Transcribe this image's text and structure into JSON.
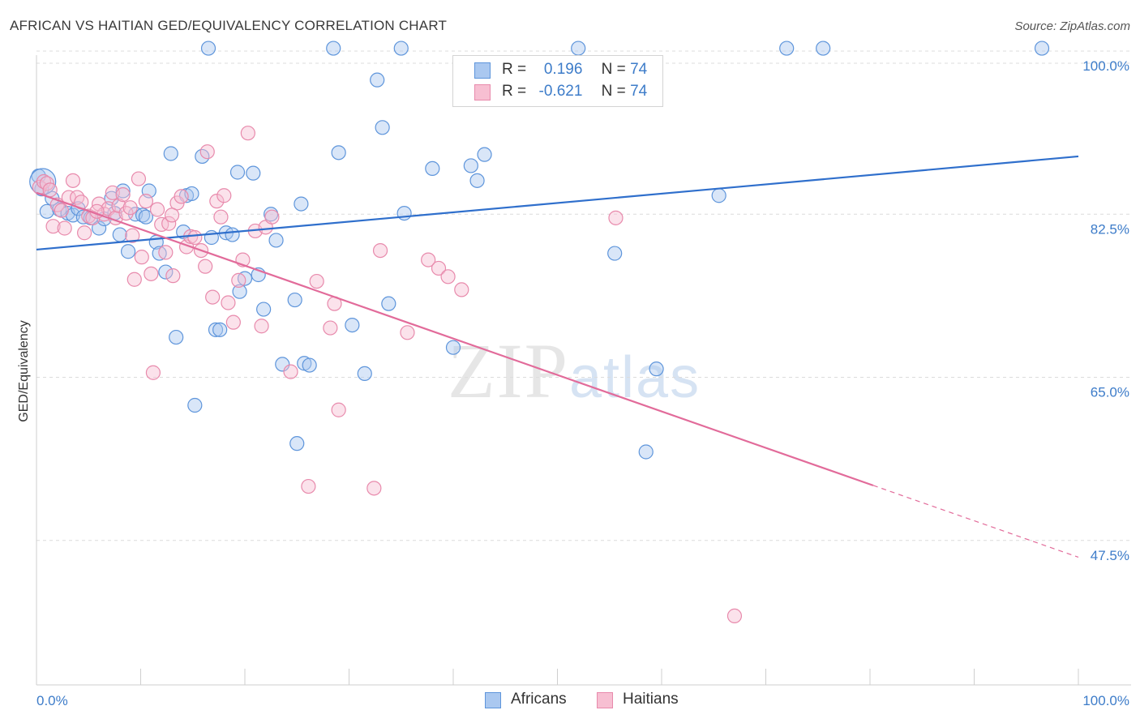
{
  "title": "AFRICAN VS HAITIAN GED/EQUIVALENCY CORRELATION CHART",
  "source": "Source: ZipAtlas.com",
  "watermark": {
    "zip": "ZIP",
    "atlas": "atlas"
  },
  "legend": {
    "r_label": "R =",
    "n_label": "N =",
    "africans": {
      "r": "0.196",
      "n": "74"
    },
    "haitians": {
      "r": "-0.621",
      "n": "74"
    }
  },
  "bottom_legend": {
    "africans": "Africans",
    "haitians": "Haitians"
  },
  "colors": {
    "africans_fill": "#aac8f0",
    "africans_stroke": "#5e95db",
    "africans_line": "#2f6fcc",
    "haitians_fill": "#f7bfd2",
    "haitians_stroke": "#e88aac",
    "haitians_line": "#e26b9a",
    "tick_text": "#3d7cc9"
  },
  "chart_data": {
    "type": "scatter",
    "title": "AFRICAN VS HAITIAN GED/EQUIVALENCY CORRELATION CHART",
    "xlabel": "",
    "ylabel": "GED/Equivalency",
    "xlim": [
      0,
      100
    ],
    "ylim": [
      32,
      102
    ],
    "x_tick_labels": [
      "0.0%",
      "100.0%"
    ],
    "y_ticks": [
      {
        "value": 100,
        "label": "100.0%"
      },
      {
        "value": 82.5,
        "label": "82.5%"
      },
      {
        "value": 65,
        "label": "65.0%"
      },
      {
        "value": 47.5,
        "label": "47.5%"
      }
    ],
    "grid": "horizontal dashed",
    "legend_position": "top-center",
    "series": [
      {
        "name": "Africans",
        "trend": {
          "x": [
            0,
            100
          ],
          "y": [
            78.7,
            88.7
          ],
          "solid_until": 100
        },
        "points": [
          [
            0.2,
            86.6
          ],
          [
            0.5,
            85.2
          ],
          [
            1.0,
            82.8
          ],
          [
            1.5,
            84.2
          ],
          [
            2.2,
            83.0
          ],
          [
            3.0,
            82.6
          ],
          [
            3.5,
            82.4
          ],
          [
            4.0,
            83.1
          ],
          [
            4.5,
            82.2
          ],
          [
            5.2,
            82.1
          ],
          [
            6.0,
            81.0
          ],
          [
            6.5,
            82.0
          ],
          [
            7.2,
            84.2
          ],
          [
            7.5,
            82.6
          ],
          [
            8.0,
            80.3
          ],
          [
            8.3,
            85.0
          ],
          [
            8.8,
            78.5
          ],
          [
            9.5,
            82.5
          ],
          [
            10.2,
            82.4
          ],
          [
            10.5,
            82.2
          ],
          [
            10.8,
            85.0
          ],
          [
            11.5,
            79.5
          ],
          [
            11.8,
            78.3
          ],
          [
            12.4,
            76.3
          ],
          [
            12.9,
            89.0
          ],
          [
            13.4,
            69.3
          ],
          [
            14.1,
            80.6
          ],
          [
            14.4,
            84.5
          ],
          [
            14.9,
            84.7
          ],
          [
            15.2,
            62.0
          ],
          [
            15.9,
            88.7
          ],
          [
            16.5,
            100.3
          ],
          [
            16.8,
            80.0
          ],
          [
            17.2,
            70.1
          ],
          [
            17.6,
            70.1
          ],
          [
            18.2,
            80.5
          ],
          [
            18.8,
            80.3
          ],
          [
            19.3,
            87.0
          ],
          [
            19.5,
            74.2
          ],
          [
            20.0,
            75.6
          ],
          [
            20.8,
            86.9
          ],
          [
            21.3,
            76.0
          ],
          [
            21.8,
            72.3
          ],
          [
            22.5,
            82.5
          ],
          [
            23.0,
            79.7
          ],
          [
            23.6,
            66.4
          ],
          [
            24.8,
            73.3
          ],
          [
            25.0,
            57.9
          ],
          [
            25.4,
            83.6
          ],
          [
            25.7,
            66.5
          ],
          [
            26.2,
            66.3
          ],
          [
            28.5,
            100.3
          ],
          [
            29.0,
            89.1
          ],
          [
            30.3,
            70.6
          ],
          [
            31.5,
            65.4
          ],
          [
            32.7,
            96.9
          ],
          [
            33.2,
            91.8
          ],
          [
            33.8,
            72.9
          ],
          [
            35.0,
            100.3
          ],
          [
            35.3,
            82.6
          ],
          [
            38.0,
            87.4
          ],
          [
            40.0,
            68.2
          ],
          [
            41.7,
            87.7
          ],
          [
            42.3,
            86.1
          ],
          [
            43.0,
            88.9
          ],
          [
            52.0,
            100.3
          ],
          [
            55.5,
            78.3
          ],
          [
            58.5,
            57.0
          ],
          [
            59.5,
            65.9
          ],
          [
            65.5,
            84.5
          ],
          [
            72.0,
            100.3
          ],
          [
            75.5,
            100.3
          ],
          [
            96.5,
            100.3
          ],
          [
            0.6,
            86.0
          ]
        ]
      },
      {
        "name": "Haitians",
        "trend": {
          "x": [
            0,
            100
          ],
          "y": [
            84.8,
            45.7
          ],
          "solid_until": 80.3
        },
        "points": [
          [
            0.3,
            85.4
          ],
          [
            0.7,
            86.0
          ],
          [
            1.0,
            85.8
          ],
          [
            1.3,
            85.1
          ],
          [
            1.6,
            81.2
          ],
          [
            2.0,
            83.5
          ],
          [
            2.4,
            82.9
          ],
          [
            2.7,
            81.0
          ],
          [
            3.1,
            84.3
          ],
          [
            3.5,
            86.1
          ],
          [
            3.9,
            84.3
          ],
          [
            4.3,
            83.8
          ],
          [
            4.6,
            80.5
          ],
          [
            5.0,
            82.3
          ],
          [
            5.4,
            82.1
          ],
          [
            6.0,
            83.6
          ],
          [
            6.5,
            82.5
          ],
          [
            6.9,
            83.1
          ],
          [
            7.3,
            84.8
          ],
          [
            7.6,
            82.1
          ],
          [
            7.9,
            83.4
          ],
          [
            8.3,
            84.6
          ],
          [
            8.6,
            82.6
          ],
          [
            9.0,
            83.2
          ],
          [
            9.4,
            75.5
          ],
          [
            9.8,
            86.3
          ],
          [
            10.1,
            77.9
          ],
          [
            10.5,
            83.9
          ],
          [
            11.0,
            76.1
          ],
          [
            11.2,
            65.5
          ],
          [
            11.6,
            83.0
          ],
          [
            12.0,
            81.4
          ],
          [
            12.4,
            78.4
          ],
          [
            12.7,
            81.5
          ],
          [
            13.1,
            75.9
          ],
          [
            13.5,
            83.7
          ],
          [
            13.9,
            84.4
          ],
          [
            14.4,
            79.0
          ],
          [
            14.8,
            80.1
          ],
          [
            15.2,
            80.0
          ],
          [
            15.8,
            78.6
          ],
          [
            16.2,
            76.9
          ],
          [
            16.4,
            89.2
          ],
          [
            16.9,
            73.6
          ],
          [
            17.3,
            83.9
          ],
          [
            17.7,
            82.2
          ],
          [
            18.0,
            84.5
          ],
          [
            18.4,
            73.0
          ],
          [
            18.9,
            70.9
          ],
          [
            19.4,
            75.4
          ],
          [
            19.8,
            77.6
          ],
          [
            20.3,
            91.2
          ],
          [
            21.0,
            80.7
          ],
          [
            21.6,
            70.5
          ],
          [
            22.0,
            81.1
          ],
          [
            22.6,
            82.2
          ],
          [
            24.4,
            65.6
          ],
          [
            26.1,
            53.3
          ],
          [
            26.9,
            75.3
          ],
          [
            28.2,
            70.3
          ],
          [
            28.6,
            72.9
          ],
          [
            29.0,
            61.5
          ],
          [
            32.4,
            53.1
          ],
          [
            33.0,
            78.6
          ],
          [
            35.6,
            69.8
          ],
          [
            37.6,
            77.6
          ],
          [
            38.6,
            76.7
          ],
          [
            39.5,
            75.8
          ],
          [
            40.8,
            74.4
          ],
          [
            55.6,
            82.1
          ],
          [
            67.0,
            39.4
          ],
          [
            5.8,
            82.8
          ],
          [
            13.0,
            82.4
          ],
          [
            9.2,
            80.2
          ]
        ]
      }
    ]
  }
}
